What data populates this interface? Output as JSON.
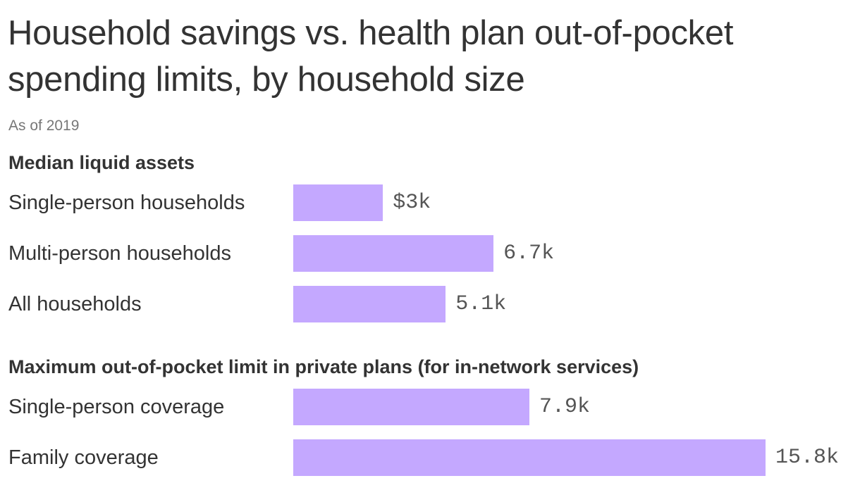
{
  "title": "Household savings vs. health plan out-of-pocket spending limits, by household size",
  "subtitle": "As of 2019",
  "chart_data": {
    "type": "bar",
    "orientation": "horizontal",
    "bar_color": "#c4a8ff",
    "xlim": [
      0,
      15.8
    ],
    "unit": "k",
    "groups": [
      {
        "label": "Median liquid assets",
        "rows": [
          {
            "category": "Single-person households",
            "value": 3.0,
            "label": "$3k"
          },
          {
            "category": "Multi-person households",
            "value": 6.7,
            "label": "6.7k"
          },
          {
            "category": "All households",
            "value": 5.1,
            "label": "5.1k"
          }
        ]
      },
      {
        "label": "Maximum out-of-pocket limit in private plans (for in-network services)",
        "rows": [
          {
            "category": "Single-person coverage",
            "value": 7.9,
            "label": "7.9k"
          },
          {
            "category": "Family coverage",
            "value": 15.8,
            "label": "15.8k"
          }
        ]
      }
    ]
  }
}
